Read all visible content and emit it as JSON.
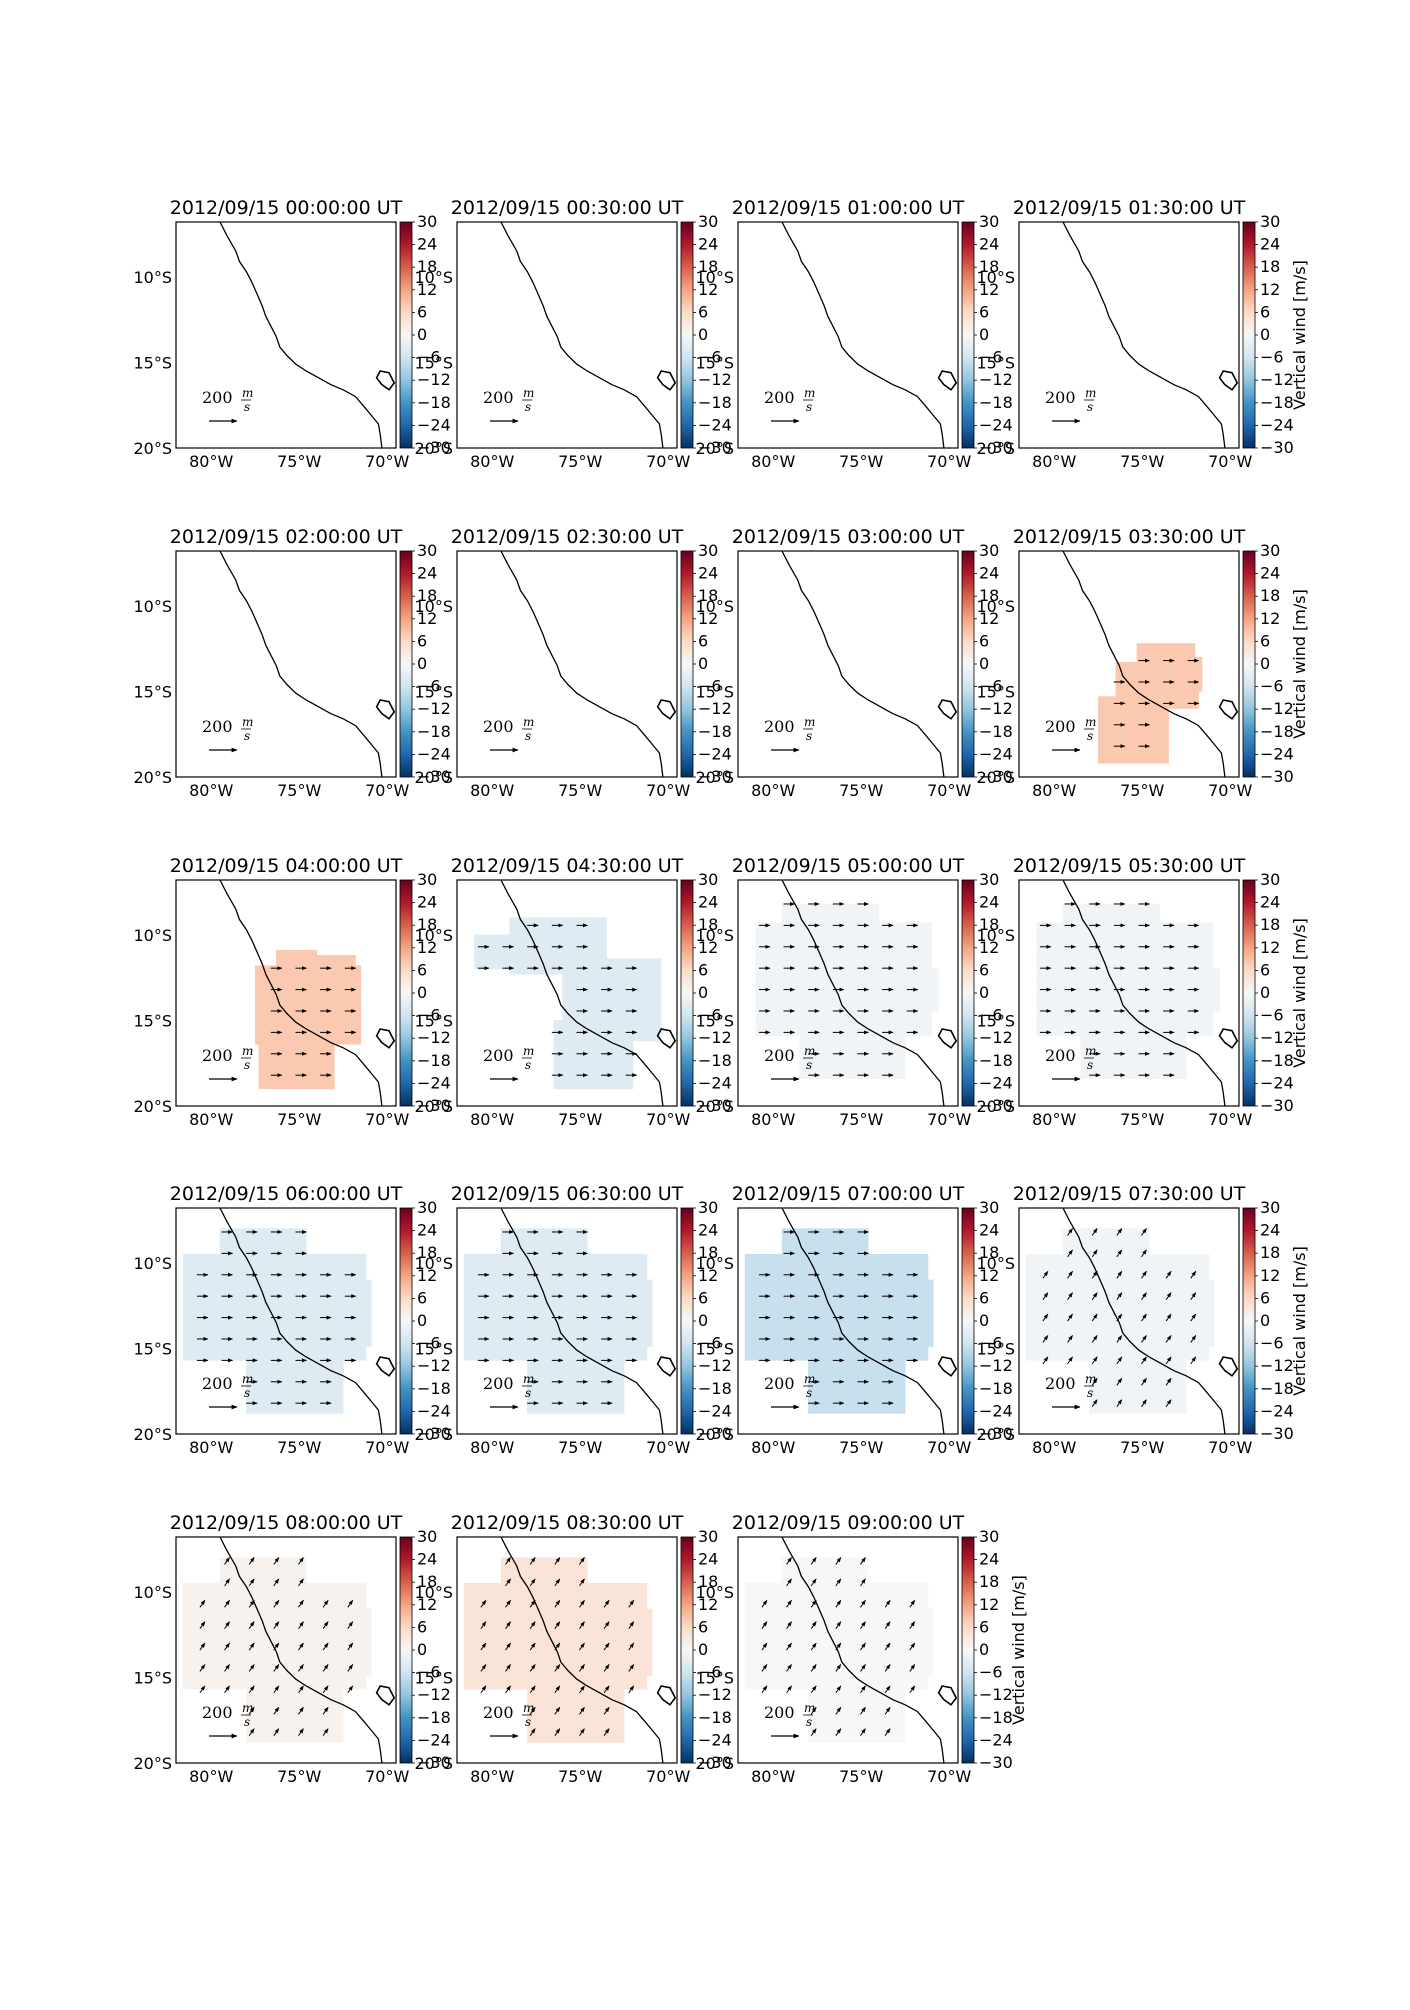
{
  "figure": {
    "panels": [
      {
        "title": "2012/09/15 00:00:00 UT",
        "w": null
      },
      {
        "title": "2012/09/15 00:30:00 UT",
        "w": null
      },
      {
        "title": "2012/09/15 01:00:00 UT",
        "w": null
      },
      {
        "title": "2012/09/15 01:30:00 UT",
        "w": null
      },
      {
        "title": "2012/09/15 02:00:00 UT",
        "w": null
      },
      {
        "title": "2012/09/15 02:30:00 UT",
        "w": null
      },
      {
        "title": "2012/09/15 03:00:00 UT",
        "w": null
      },
      {
        "title": "2012/09/15 03:30:00 UT",
        "w": 8,
        "region": "A",
        "arrow": "right"
      },
      {
        "title": "2012/09/15 04:00:00 UT",
        "w": 8,
        "region": "B",
        "arrow": "right"
      },
      {
        "title": "2012/09/15 04:30:00 UT",
        "w": -4,
        "region": "C",
        "arrow": "right"
      },
      {
        "title": "2012/09/15 05:00:00 UT",
        "w": -1,
        "region": "D",
        "arrow": "right"
      },
      {
        "title": "2012/09/15 05:30:00 UT",
        "w": -1,
        "region": "D",
        "arrow": "right"
      },
      {
        "title": "2012/09/15 06:00:00 UT",
        "w": -4,
        "region": "E",
        "arrow": "right"
      },
      {
        "title": "2012/09/15 06:30:00 UT",
        "w": -4,
        "region": "E",
        "arrow": "right"
      },
      {
        "title": "2012/09/15 07:00:00 UT",
        "w": -7,
        "region": "E",
        "arrow": "right"
      },
      {
        "title": "2012/09/15 07:30:00 UT",
        "w": -1,
        "region": "E",
        "arrow": "ne"
      },
      {
        "title": "2012/09/15 08:00:00 UT",
        "w": 1,
        "region": "E",
        "arrow": "ne"
      },
      {
        "title": "2012/09/15 08:30:00 UT",
        "w": 4,
        "region": "E",
        "arrow": "ne"
      },
      {
        "title": "2012/09/15 09:00:00 UT",
        "w": 0,
        "region": "E",
        "arrow": "ne"
      }
    ],
    "lat_ticks": [
      "10°S",
      "15°S",
      "20°S"
    ],
    "lon_ticks": [
      "80°W",
      "75°W",
      "70°W"
    ],
    "colorbar": {
      "ticks": [
        "30",
        "24",
        "18",
        "12",
        "6",
        "0",
        "−6",
        "−12",
        "−18",
        "−24",
        "−30"
      ],
      "label": "Vertical wind [m/s]",
      "range": [
        -30,
        30
      ],
      "colormap": "RdBu_r"
    },
    "scale_arrow": {
      "value": "200",
      "num": "m",
      "den": "s"
    }
  }
}
